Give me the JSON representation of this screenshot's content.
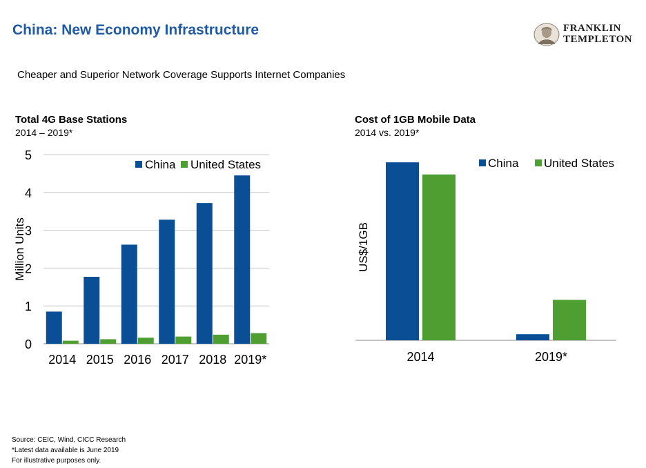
{
  "header": {
    "title": "China: New Economy Infrastructure",
    "brand_line1": "FRANKLIN",
    "brand_line2": "TEMPLETON",
    "subtitle": "Cheaper and Superior Network Coverage Supports Internet Companies"
  },
  "colors": {
    "title": "#1f5aa6",
    "china": "#0a4f96",
    "united_states": "#4e9e31",
    "gridline": "#c8c8c8"
  },
  "chart_data": [
    {
      "type": "bar",
      "title": "Total 4G Base Stations",
      "subtitle": "2014 – 2019*",
      "ylabel": "Million Units",
      "xlabel": "",
      "categories": [
        "2014",
        "2015",
        "2016",
        "2017",
        "2018",
        "2019*"
      ],
      "series": [
        {
          "name": "China",
          "values": [
            0.85,
            1.77,
            2.62,
            3.28,
            3.72,
            4.45
          ]
        },
        {
          "name": "United States",
          "values": [
            0.08,
            0.12,
            0.16,
            0.19,
            0.24,
            0.28
          ]
        }
      ],
      "ylim": [
        0,
        5
      ],
      "yticks": [
        "0",
        "1",
        "2",
        "3",
        "4",
        "5"
      ],
      "grid": true,
      "legend": "top"
    },
    {
      "type": "bar",
      "title": "Cost of 1GB Mobile Data",
      "subtitle": "2014 vs. 2019*",
      "ylabel": "US$/1GB",
      "xlabel": "",
      "categories": [
        "2014",
        "2019*"
      ],
      "series": [
        {
          "name": "China",
          "values": [
            0.88,
            0.03
          ]
        },
        {
          "name": "United States",
          "values": [
            0.82,
            0.2
          ]
        }
      ],
      "ylim": [
        0,
        1
      ],
      "grid": false,
      "legend": "top"
    }
  ],
  "footnotes": [
    "Source: CEIC, Wind, CICC Research",
    "*Latest data available is June 2019",
    "For illustrative purposes only."
  ]
}
